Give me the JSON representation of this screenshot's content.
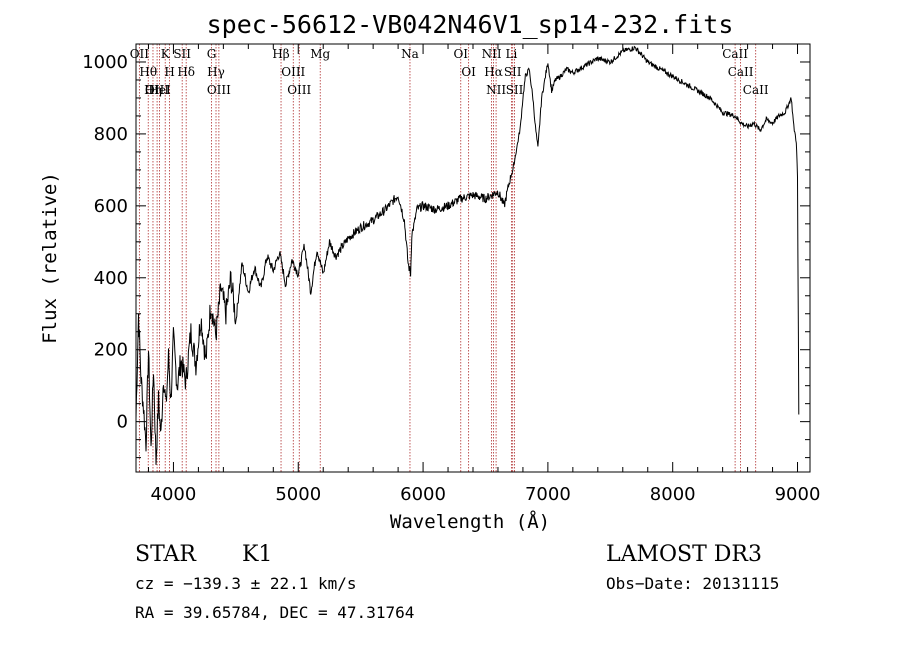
{
  "chart_data": {
    "type": "line",
    "title": "spec-56612-VB042N46V1_sp14-232.fits",
    "xlabel": "Wavelength (Å)",
    "ylabel": "Flux (relative)",
    "xlim": [
      3700,
      9100
    ],
    "ylim": [
      -140,
      1050
    ],
    "xticks": [
      4000,
      5000,
      6000,
      7000,
      8000,
      9000
    ],
    "yticks": [
      0,
      200,
      400,
      600,
      800,
      1000
    ],
    "grid": false,
    "series": [
      {
        "name": "spectrum",
        "x": [
          3700,
          3720,
          3740,
          3760,
          3780,
          3800,
          3820,
          3840,
          3860,
          3880,
          3900,
          3920,
          3940,
          3960,
          3980,
          4000,
          4030,
          4060,
          4100,
          4140,
          4180,
          4220,
          4260,
          4300,
          4340,
          4380,
          4420,
          4460,
          4500,
          4550,
          4600,
          4650,
          4700,
          4750,
          4800,
          4850,
          4900,
          4950,
          5000,
          5050,
          5100,
          5150,
          5200,
          5250,
          5300,
          5400,
          5500,
          5600,
          5700,
          5800,
          5850,
          5880,
          5900,
          5910,
          5930,
          5950,
          6000,
          6100,
          6200,
          6300,
          6400,
          6500,
          6550,
          6600,
          6650,
          6700,
          6720,
          6750,
          6780,
          6800,
          6820,
          6850,
          6880,
          6900,
          6920,
          6950,
          6980,
          7000,
          7030,
          7060,
          7100,
          7150,
          7200,
          7300,
          7400,
          7500,
          7600,
          7700,
          7750,
          7800,
          7900,
          8000,
          8100,
          8200,
          8300,
          8400,
          8500,
          8550,
          8600,
          8650,
          8700,
          8750,
          8800,
          8850,
          8900,
          8950,
          8970,
          8990,
          9000,
          9010
        ],
        "y": [
          10,
          300,
          120,
          40,
          -60,
          200,
          -80,
          150,
          -110,
          60,
          -40,
          130,
          40,
          180,
          60,
          230,
          100,
          170,
          110,
          250,
          160,
          290,
          170,
          330,
          240,
          370,
          300,
          400,
          280,
          440,
          360,
          430,
          370,
          460,
          420,
          470,
          380,
          450,
          410,
          490,
          360,
          480,
          410,
          500,
          460,
          510,
          540,
          560,
          590,
          630,
          560,
          440,
          410,
          520,
          550,
          590,
          600,
          590,
          600,
          620,
          630,
          620,
          630,
          640,
          600,
          680,
          700,
          760,
          820,
          900,
          960,
          980,
          900,
          820,
          760,
          900,
          960,
          1000,
          920,
          950,
          960,
          980,
          970,
          990,
          1010,
          1000,
          1030,
          1040,
          1020,
          1000,
          980,
          960,
          940,
          920,
          900,
          860,
          850,
          830,
          820,
          830,
          810,
          840,
          830,
          850,
          860,
          900,
          820,
          780,
          680,
          20
        ]
      }
    ],
    "emission_lines": [
      {
        "label": "OII",
        "x": 3727
      },
      {
        "label": "Hθ",
        "x": 3798
      },
      {
        "label": "Hη",
        "x": 3836
      },
      {
        "label": "OIII",
        "x": 3869
      },
      {
        "label": "HeI",
        "x": 3889
      },
      {
        "label": "K",
        "x": 3934
      },
      {
        "label": "H",
        "x": 3969
      },
      {
        "label": "SII",
        "x": 4070
      },
      {
        "label": "Hδ",
        "x": 4102
      },
      {
        "label": "G",
        "x": 4305
      },
      {
        "label": "Hγ",
        "x": 4341
      },
      {
        "label": "OIII",
        "x": 4364
      },
      {
        "label": "Hβ",
        "x": 4862
      },
      {
        "label": "OIII",
        "x": 4960
      },
      {
        "label": "OIII",
        "x": 5008
      },
      {
        "label": "Mg",
        "x": 5176
      },
      {
        "label": "Na",
        "x": 5895
      },
      {
        "label": "OI",
        "x": 6302
      },
      {
        "label": "OI",
        "x": 6365
      },
      {
        "label": "NII",
        "x": 6549
      },
      {
        "label": "Hα",
        "x": 6565
      },
      {
        "label": "NII",
        "x": 6585
      },
      {
        "label": "Li",
        "x": 6708
      },
      {
        "label": "SII",
        "x": 6718
      },
      {
        "label": "SII",
        "x": 6733
      },
      {
        "label": "CaII",
        "x": 8500
      },
      {
        "label": "CaII",
        "x": 8544
      },
      {
        "label": "CaII",
        "x": 8665
      }
    ]
  },
  "info": {
    "class": "STAR",
    "subclass": "K1",
    "survey": "LAMOST DR3",
    "cz": "cz = −139.3 ± 22.1 km/s",
    "obs_date": "Obs−Date: 20131115",
    "coords": "RA =  39.65784, DEC =  47.31764"
  },
  "colors": {
    "spectrum": "#000000",
    "line_markers": "#b03030",
    "axes": "#000000"
  }
}
